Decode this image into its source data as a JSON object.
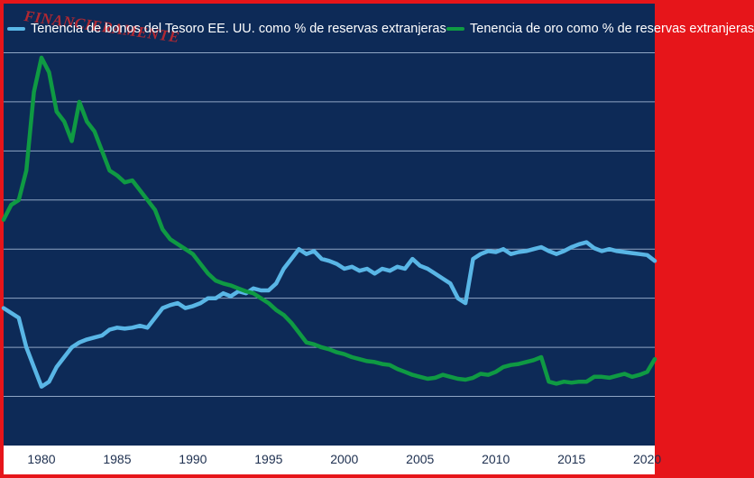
{
  "watermark": "FINANCIERAMENTE",
  "legend": [
    {
      "label": "Tenencia de bonos del Tesoro EE. UU. como % de reservas extranjeras",
      "color": "#59b6e6"
    },
    {
      "label": "Tenencia de oro como % de reservas extranjeras",
      "color": "#0f9a43"
    }
  ],
  "chart_data": {
    "type": "line",
    "background": "#0d2a57",
    "grid": true,
    "xlim": [
      1977.5,
      2020.5
    ],
    "ylim": [
      0,
      45
    ],
    "x_ticks": [
      1980,
      1985,
      1990,
      1995,
      2000,
      2005,
      2010,
      2015,
      2020
    ],
    "x_tick_labels": [
      "1980",
      "1985",
      "1990",
      "1995",
      "2000",
      "2005",
      "2010",
      "2015",
      "2020"
    ],
    "series": [
      {
        "name": "Tenencia de bonos del Tesoro EE. UU. como % de reservas extranjeras",
        "color": "#59b6e6",
        "points": [
          [
            1977.5,
            14
          ],
          [
            1978,
            13.5
          ],
          [
            1978.5,
            13
          ],
          [
            1979,
            10
          ],
          [
            1979.5,
            8
          ],
          [
            1980,
            6
          ],
          [
            1980.5,
            6.5
          ],
          [
            1981,
            8
          ],
          [
            1981.5,
            9
          ],
          [
            1982,
            10
          ],
          [
            1982.5,
            10.5
          ],
          [
            1983,
            10.8
          ],
          [
            1983.5,
            11
          ],
          [
            1984,
            11.2
          ],
          [
            1984.5,
            11.8
          ],
          [
            1985,
            12
          ],
          [
            1985.5,
            11.9
          ],
          [
            1986,
            12
          ],
          [
            1986.5,
            12.2
          ],
          [
            1987,
            12
          ],
          [
            1988,
            14
          ],
          [
            1988.5,
            14.3
          ],
          [
            1989,
            14.5
          ],
          [
            1989.5,
            14
          ],
          [
            1990,
            14.2
          ],
          [
            1990.5,
            14.5
          ],
          [
            1991,
            15
          ],
          [
            1991.5,
            15
          ],
          [
            1992,
            15.5
          ],
          [
            1992.5,
            15.2
          ],
          [
            1993,
            15.7
          ],
          [
            1993.5,
            15.5
          ],
          [
            1994,
            16
          ],
          [
            1994.5,
            15.8
          ],
          [
            1995,
            15.8
          ],
          [
            1995.5,
            16.5
          ],
          [
            1996,
            18
          ],
          [
            1996.5,
            19
          ],
          [
            1997,
            20
          ],
          [
            1997.5,
            19.5
          ],
          [
            1998,
            19.8
          ],
          [
            1998.5,
            19
          ],
          [
            1999,
            18.8
          ],
          [
            1999.5,
            18.5
          ],
          [
            2000,
            18
          ],
          [
            2000.5,
            18.2
          ],
          [
            2001,
            17.8
          ],
          [
            2001.5,
            18
          ],
          [
            2002,
            17.5
          ],
          [
            2002.5,
            18
          ],
          [
            2003,
            17.8
          ],
          [
            2003.5,
            18.2
          ],
          [
            2004,
            18
          ],
          [
            2004.5,
            19
          ],
          [
            2005,
            18.3
          ],
          [
            2005.5,
            18
          ],
          [
            2006,
            17.5
          ],
          [
            2006.5,
            17
          ],
          [
            2007,
            16.5
          ],
          [
            2007.5,
            15
          ],
          [
            2008,
            14.5
          ],
          [
            2008.5,
            19
          ],
          [
            2009,
            19.5
          ],
          [
            2009.5,
            19.8
          ],
          [
            2010,
            19.7
          ],
          [
            2010.5,
            20
          ],
          [
            2011,
            19.5
          ],
          [
            2011.5,
            19.7
          ],
          [
            2012,
            19.8
          ],
          [
            2012.5,
            20
          ],
          [
            2013,
            20.2
          ],
          [
            2013.5,
            19.8
          ],
          [
            2014,
            19.5
          ],
          [
            2014.5,
            19.8
          ],
          [
            2015,
            20.2
          ],
          [
            2015.5,
            20.5
          ],
          [
            2016,
            20.7
          ],
          [
            2016.5,
            20.1
          ],
          [
            2017,
            19.8
          ],
          [
            2017.5,
            20
          ],
          [
            2018,
            19.8
          ],
          [
            2018.5,
            19.7
          ],
          [
            2019,
            19.6
          ],
          [
            2019.5,
            19.5
          ],
          [
            2020,
            19.4
          ],
          [
            2020.5,
            18.8
          ]
        ]
      },
      {
        "name": "Tenencia de oro como % de reservas extranjeras",
        "color": "#0f9a43",
        "points": [
          [
            1977.5,
            23
          ],
          [
            1978,
            24.5
          ],
          [
            1978.5,
            25
          ],
          [
            1979,
            28
          ],
          [
            1979.5,
            36
          ],
          [
            1980,
            39.5
          ],
          [
            1980.5,
            38
          ],
          [
            1981,
            34
          ],
          [
            1981.5,
            33
          ],
          [
            1982,
            31
          ],
          [
            1982.5,
            35
          ],
          [
            1983,
            33
          ],
          [
            1983.5,
            32
          ],
          [
            1984,
            30
          ],
          [
            1984.5,
            28
          ],
          [
            1985,
            27.5
          ],
          [
            1985.5,
            26.8
          ],
          [
            1986,
            27
          ],
          [
            1986.5,
            26
          ],
          [
            1987,
            25
          ],
          [
            1987.5,
            24
          ],
          [
            1988,
            22
          ],
          [
            1988.5,
            21
          ],
          [
            1989,
            20.5
          ],
          [
            1989.5,
            20
          ],
          [
            1990,
            19.5
          ],
          [
            1990.5,
            18.5
          ],
          [
            1991,
            17.5
          ],
          [
            1991.5,
            16.8
          ],
          [
            1992,
            16.5
          ],
          [
            1992.5,
            16.3
          ],
          [
            1993,
            16
          ],
          [
            1993.5,
            15.7
          ],
          [
            1994,
            15.5
          ],
          [
            1994.5,
            15
          ],
          [
            1995,
            14.5
          ],
          [
            1995.5,
            13.8
          ],
          [
            1996,
            13.3
          ],
          [
            1996.5,
            12.5
          ],
          [
            1997,
            11.5
          ],
          [
            1997.5,
            10.5
          ],
          [
            1998,
            10.3
          ],
          [
            1998.5,
            10
          ],
          [
            1999,
            9.8
          ],
          [
            1999.5,
            9.5
          ],
          [
            2000,
            9.3
          ],
          [
            2000.5,
            9
          ],
          [
            2001,
            8.8
          ],
          [
            2001.5,
            8.6
          ],
          [
            2002,
            8.5
          ],
          [
            2002.5,
            8.3
          ],
          [
            2003,
            8.2
          ],
          [
            2003.5,
            7.8
          ],
          [
            2004,
            7.5
          ],
          [
            2004.5,
            7.2
          ],
          [
            2005,
            7
          ],
          [
            2005.5,
            6.8
          ],
          [
            2006,
            6.9
          ],
          [
            2006.5,
            7.2
          ],
          [
            2007,
            7
          ],
          [
            2007.5,
            6.8
          ],
          [
            2008,
            6.7
          ],
          [
            2008.5,
            6.9
          ],
          [
            2009,
            7.3
          ],
          [
            2009.5,
            7.2
          ],
          [
            2010,
            7.5
          ],
          [
            2010.5,
            8
          ],
          [
            2011,
            8.2
          ],
          [
            2011.5,
            8.3
          ],
          [
            2012,
            8.5
          ],
          [
            2012.5,
            8.7
          ],
          [
            2013,
            9
          ],
          [
            2013.5,
            6.5
          ],
          [
            2014,
            6.3
          ],
          [
            2014.5,
            6.5
          ],
          [
            2015,
            6.4
          ],
          [
            2015.5,
            6.5
          ],
          [
            2016,
            6.5
          ],
          [
            2016.5,
            7
          ],
          [
            2017,
            7
          ],
          [
            2017.5,
            6.9
          ],
          [
            2018,
            7.1
          ],
          [
            2018.5,
            7.3
          ],
          [
            2019,
            7
          ],
          [
            2019.5,
            7.2
          ],
          [
            2020,
            7.5
          ],
          [
            2020.5,
            8.8
          ]
        ]
      }
    ]
  }
}
